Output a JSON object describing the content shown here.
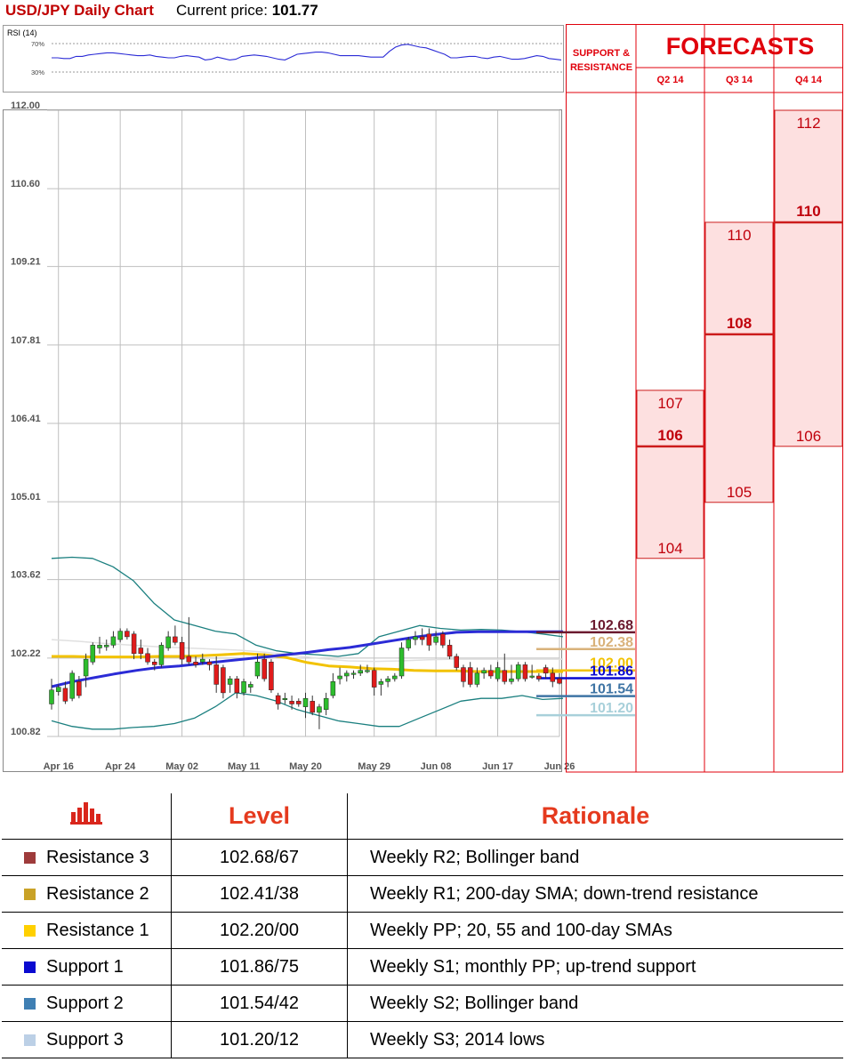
{
  "header": {
    "title": "USD/JPY Daily Chart",
    "price_label": "Current price: ",
    "price_value": "101.77"
  },
  "rsi": {
    "label": "RSI (14)",
    "level_high": "70%",
    "level_low": "30%",
    "values": [
      50,
      50,
      49,
      49,
      52,
      52,
      54,
      55,
      56,
      57,
      57,
      56,
      55,
      54,
      53,
      53,
      54,
      52,
      51,
      50,
      50,
      52,
      53,
      52,
      51,
      47,
      48,
      51,
      49,
      47,
      48,
      52,
      53,
      54,
      53,
      52,
      50,
      48,
      47,
      51,
      55,
      56,
      57,
      58,
      58,
      57,
      55,
      53,
      53,
      53,
      53,
      52,
      51,
      51,
      51,
      59,
      65,
      68,
      69,
      67,
      65,
      64,
      61,
      58,
      55,
      50,
      50,
      51,
      52,
      52,
      50,
      49,
      51,
      52,
      50,
      48,
      48,
      49,
      51,
      53,
      52,
      49,
      48,
      47
    ],
    "colors": {
      "line": "#2b2bd6",
      "guide": "#9a9a9a"
    }
  },
  "chart_data": {
    "type": "candlestick",
    "title": "USD/JPY Daily Chart",
    "ylim": [
      100.82,
      112.0
    ],
    "y_ticks": [
      "112.00",
      "110.60",
      "109.21",
      "107.81",
      "106.41",
      "105.01",
      "103.62",
      "102.22",
      "100.82"
    ],
    "x_tick_labels": [
      "Apr 16",
      "Apr 24",
      "May 02",
      "May 11",
      "May 20",
      "May 29",
      "Jun 08",
      "Jun 17",
      "Jun 26"
    ],
    "candles": [
      {
        "o": 101.4,
        "h": 101.85,
        "l": 101.3,
        "c": 101.65
      },
      {
        "o": 101.62,
        "h": 101.75,
        "l": 101.55,
        "c": 101.7
      },
      {
        "o": 101.68,
        "h": 101.8,
        "l": 101.4,
        "c": 101.45
      },
      {
        "o": 101.5,
        "h": 102.0,
        "l": 101.45,
        "c": 101.95
      },
      {
        "o": 101.8,
        "h": 101.9,
        "l": 101.5,
        "c": 101.55
      },
      {
        "o": 101.9,
        "h": 102.3,
        "l": 101.7,
        "c": 102.2
      },
      {
        "o": 102.15,
        "h": 102.5,
        "l": 102.1,
        "c": 102.45
      },
      {
        "o": 102.4,
        "h": 102.6,
        "l": 102.3,
        "c": 102.45
      },
      {
        "o": 102.42,
        "h": 102.55,
        "l": 102.35,
        "c": 102.45
      },
      {
        "o": 102.45,
        "h": 102.7,
        "l": 102.4,
        "c": 102.6
      },
      {
        "o": 102.55,
        "h": 102.75,
        "l": 102.5,
        "c": 102.7
      },
      {
        "o": 102.7,
        "h": 102.75,
        "l": 102.55,
        "c": 102.6
      },
      {
        "o": 102.65,
        "h": 102.7,
        "l": 102.2,
        "c": 102.3
      },
      {
        "o": 102.4,
        "h": 102.55,
        "l": 102.2,
        "c": 102.3
      },
      {
        "o": 102.3,
        "h": 102.4,
        "l": 102.1,
        "c": 102.15
      },
      {
        "o": 102.15,
        "h": 102.2,
        "l": 102.0,
        "c": 102.1
      },
      {
        "o": 102.1,
        "h": 102.5,
        "l": 102.05,
        "c": 102.45
      },
      {
        "o": 102.4,
        "h": 102.7,
        "l": 102.35,
        "c": 102.6
      },
      {
        "o": 102.6,
        "h": 102.8,
        "l": 102.45,
        "c": 102.5
      },
      {
        "o": 102.5,
        "h": 102.6,
        "l": 102.1,
        "c": 102.2
      },
      {
        "o": 102.25,
        "h": 102.95,
        "l": 102.1,
        "c": 102.15
      },
      {
        "o": 102.15,
        "h": 102.25,
        "l": 102.05,
        "c": 102.1
      },
      {
        "o": 102.15,
        "h": 102.3,
        "l": 102.1,
        "c": 102.2
      },
      {
        "o": 102.15,
        "h": 102.2,
        "l": 102.0,
        "c": 102.1
      },
      {
        "o": 102.1,
        "h": 102.25,
        "l": 101.6,
        "c": 101.75
      },
      {
        "o": 102.05,
        "h": 102.1,
        "l": 101.5,
        "c": 101.6
      },
      {
        "o": 101.75,
        "h": 101.9,
        "l": 101.6,
        "c": 101.85
      },
      {
        "o": 101.85,
        "h": 101.9,
        "l": 101.5,
        "c": 101.6
      },
      {
        "o": 101.6,
        "h": 101.85,
        "l": 101.55,
        "c": 101.8
      },
      {
        "o": 101.7,
        "h": 101.8,
        "l": 101.6,
        "c": 101.75
      },
      {
        "o": 101.9,
        "h": 102.3,
        "l": 101.85,
        "c": 102.15
      },
      {
        "o": 102.2,
        "h": 102.3,
        "l": 101.8,
        "c": 101.85
      },
      {
        "o": 102.15,
        "h": 102.2,
        "l": 101.6,
        "c": 101.65
      },
      {
        "o": 101.55,
        "h": 101.6,
        "l": 101.3,
        "c": 101.4
      },
      {
        "o": 101.5,
        "h": 101.6,
        "l": 101.4,
        "c": 101.5
      },
      {
        "o": 101.45,
        "h": 101.55,
        "l": 101.3,
        "c": 101.4
      },
      {
        "o": 101.45,
        "h": 101.5,
        "l": 101.35,
        "c": 101.4
      },
      {
        "o": 101.35,
        "h": 101.6,
        "l": 101.15,
        "c": 101.5
      },
      {
        "o": 101.45,
        "h": 101.55,
        "l": 101.2,
        "c": 101.25
      },
      {
        "o": 101.25,
        "h": 101.4,
        "l": 100.95,
        "c": 101.35
      },
      {
        "o": 101.3,
        "h": 101.6,
        "l": 101.2,
        "c": 101.5
      },
      {
        "o": 101.55,
        "h": 101.95,
        "l": 101.5,
        "c": 101.8
      },
      {
        "o": 101.85,
        "h": 102.05,
        "l": 101.75,
        "c": 101.9
      },
      {
        "o": 101.9,
        "h": 102.0,
        "l": 101.8,
        "c": 101.95
      },
      {
        "o": 101.95,
        "h": 102.0,
        "l": 101.85,
        "c": 101.95
      },
      {
        "o": 101.95,
        "h": 102.1,
        "l": 101.9,
        "c": 102.0
      },
      {
        "o": 102.0,
        "h": 102.1,
        "l": 101.95,
        "c": 102.0
      },
      {
        "o": 102.0,
        "h": 102.05,
        "l": 101.55,
        "c": 101.7
      },
      {
        "o": 101.75,
        "h": 101.85,
        "l": 101.55,
        "c": 101.8
      },
      {
        "o": 101.8,
        "h": 101.9,
        "l": 101.7,
        "c": 101.85
      },
      {
        "o": 101.85,
        "h": 101.95,
        "l": 101.8,
        "c": 101.9
      },
      {
        "o": 101.9,
        "h": 102.5,
        "l": 101.85,
        "c": 102.4
      },
      {
        "o": 102.4,
        "h": 102.6,
        "l": 102.35,
        "c": 102.55
      },
      {
        "o": 102.55,
        "h": 102.7,
        "l": 102.45,
        "c": 102.6
      },
      {
        "o": 102.6,
        "h": 102.75,
        "l": 102.45,
        "c": 102.55
      },
      {
        "o": 102.65,
        "h": 102.75,
        "l": 102.35,
        "c": 102.45
      },
      {
        "o": 102.5,
        "h": 102.7,
        "l": 102.45,
        "c": 102.6
      },
      {
        "o": 102.65,
        "h": 102.7,
        "l": 102.4,
        "c": 102.45
      },
      {
        "o": 102.45,
        "h": 102.55,
        "l": 102.2,
        "c": 102.25
      },
      {
        "o": 102.25,
        "h": 102.3,
        "l": 102.0,
        "c": 102.05
      },
      {
        "o": 102.05,
        "h": 102.1,
        "l": 101.7,
        "c": 101.8
      },
      {
        "o": 102.05,
        "h": 102.15,
        "l": 101.7,
        "c": 101.75
      },
      {
        "o": 101.75,
        "h": 102.05,
        "l": 101.7,
        "c": 101.95
      },
      {
        "o": 101.95,
        "h": 102.05,
        "l": 101.85,
        "c": 102.0
      },
      {
        "o": 102.0,
        "h": 102.1,
        "l": 101.85,
        "c": 101.9
      },
      {
        "o": 101.85,
        "h": 102.15,
        "l": 101.8,
        "c": 102.05
      },
      {
        "o": 102.0,
        "h": 102.3,
        "l": 101.75,
        "c": 101.8
      },
      {
        "o": 101.8,
        "h": 102.1,
        "l": 101.75,
        "c": 101.85
      },
      {
        "o": 101.85,
        "h": 102.15,
        "l": 101.8,
        "c": 102.1
      },
      {
        "o": 102.1,
        "h": 102.15,
        "l": 101.8,
        "c": 101.85
      },
      {
        "o": 101.9,
        "h": 102.1,
        "l": 101.85,
        "c": 101.9
      },
      {
        "o": 101.9,
        "h": 101.95,
        "l": 101.8,
        "c": 101.85
      },
      {
        "o": 102.05,
        "h": 102.1,
        "l": 101.85,
        "c": 101.95
      },
      {
        "o": 101.95,
        "h": 102.05,
        "l": 101.7,
        "c": 101.8
      },
      {
        "o": 101.85,
        "h": 101.95,
        "l": 101.75,
        "c": 101.77
      }
    ],
    "series": [
      {
        "values": [
          101.71,
          101.8,
          101.87,
          101.94,
          102.0,
          102.05,
          102.08,
          102.12,
          102.16,
          102.2,
          102.24,
          102.28,
          102.32,
          102.37,
          102.41,
          102.47,
          102.53,
          102.59,
          102.64,
          102.68,
          102.69,
          102.69,
          102.69,
          102.69,
          102.69
        ]
      },
      {
        "values": [
          102.25,
          102.25,
          102.24,
          102.24,
          102.24,
          102.25,
          102.25,
          102.26,
          102.28,
          102.3,
          102.28,
          102.23,
          102.14,
          102.08,
          102.06,
          102.03,
          102.02,
          102.0,
          101.99,
          101.99,
          101.98,
          101.98,
          101.98,
          101.98,
          101.98
        ]
      },
      {
        "values": [
          102.55,
          102.52,
          102.48,
          102.45,
          102.42,
          102.4,
          102.38,
          102.36,
          102.32,
          102.27,
          102.21,
          102.17,
          102.16,
          102.17,
          102.19,
          102.2,
          102.2,
          102.2,
          102.2,
          102.2
        ]
      },
      {
        "values": [
          104.0,
          104.02,
          104.0,
          103.85,
          103.6,
          103.2,
          102.9,
          102.8,
          102.7,
          102.65,
          102.45,
          102.35,
          102.3,
          102.28,
          102.25,
          102.3,
          102.6,
          102.7,
          102.8,
          102.75,
          102.72,
          102.73,
          102.72,
          102.69,
          102.65,
          102.6
        ]
      },
      {
        "values": [
          101.1,
          101.0,
          100.95,
          100.95,
          100.98,
          101.0,
          101.05,
          101.15,
          101.35,
          101.6,
          101.55,
          101.45,
          101.3,
          101.2,
          101.1,
          101.05,
          101.0,
          101.0,
          101.15,
          101.3,
          101.45,
          101.5,
          101.5,
          101.55,
          101.48,
          101.5
        ]
      }
    ],
    "levels": [
      {
        "value": 102.68,
        "label": "102.68",
        "color": "#6b1a2f"
      },
      {
        "value": 102.38,
        "label": "102.38",
        "color": "#d9b27a"
      },
      {
        "value": 102.0,
        "label": "102.00",
        "color": "#f2c200"
      },
      {
        "value": 101.86,
        "label": "101.86",
        "color": "#0a0ad0"
      },
      {
        "value": 101.54,
        "label": "101.54",
        "color": "#3e74a4"
      },
      {
        "value": 101.2,
        "label": "101.20",
        "color": "#a8d0da"
      }
    ],
    "colors": {
      "bull": "#2dbd2d",
      "bear": "#e01b1b",
      "sma_rising": "#2b2bd6",
      "sma_flat": "#f2c200",
      "sma_grey": "#e0e0e0",
      "bollinger": "#1a7f7f"
    }
  },
  "forecasts": {
    "title": "FORECASTS",
    "sr_header": "SUPPORT & RESISTANCE",
    "quarters": [
      {
        "label": "Q2 14",
        "high": 107,
        "low": 104,
        "median": 106
      },
      {
        "label": "Q3 14",
        "high": 110,
        "low": 105,
        "median": 108
      },
      {
        "label": "Q4 14",
        "high": 112,
        "low": 106,
        "median": 110
      }
    ],
    "colors": {
      "accent": "#e0000b",
      "text": "#c0000b",
      "band": "#fde0e0",
      "line": "#cc1c1c"
    }
  },
  "levels_table": {
    "headers": {
      "icon": "bar-chart-icon",
      "level": "Level",
      "rationale": "Rationale"
    },
    "rows": [
      {
        "name": "Resistance 3",
        "level": "102.68/67",
        "rationale": "Weekly R2; Bollinger band",
        "color": "#9e3b3b"
      },
      {
        "name": "Resistance 2",
        "level": "102.41/38",
        "rationale": "Weekly R1; 200-day SMA; down-trend resistance",
        "color": "#c9a227"
      },
      {
        "name": "Resistance 1",
        "level": "102.20/00",
        "rationale": "Weekly PP; 20, 55 and 100-day SMAs",
        "color": "#ffd000"
      },
      {
        "name": "Support 1",
        "level": "101.86/75",
        "rationale": "Weekly S1; monthly PP; up-trend support",
        "color": "#0a0ad0"
      },
      {
        "name": "Support 2",
        "level": "101.54/42",
        "rationale": "Weekly S2; Bollinger band",
        "color": "#3f7fb3"
      },
      {
        "name": "Support 3",
        "level": "101.20/12",
        "rationale": "Weekly S3; 2014 lows",
        "color": "#bcd0e6"
      }
    ],
    "accent_color": "#e53a1e"
  }
}
